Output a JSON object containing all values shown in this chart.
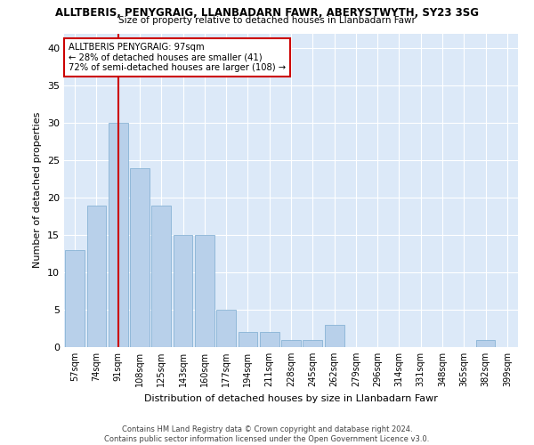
{
  "title1": "ALLTBERIS, PENYGRAIG, LLANBADARN FAWR, ABERYSTWYTH, SY23 3SG",
  "title2": "Size of property relative to detached houses in Llanbadarn Fawr",
  "xlabel": "Distribution of detached houses by size in Llanbadarn Fawr",
  "ylabel": "Number of detached properties",
  "bin_labels": [
    "57sqm",
    "74sqm",
    "91sqm",
    "108sqm",
    "125sqm",
    "143sqm",
    "160sqm",
    "177sqm",
    "194sqm",
    "211sqm",
    "228sqm",
    "245sqm",
    "262sqm",
    "279sqm",
    "296sqm",
    "314sqm",
    "331sqm",
    "348sqm",
    "365sqm",
    "382sqm",
    "399sqm"
  ],
  "bar_values": [
    13,
    19,
    30,
    24,
    19,
    15,
    15,
    5,
    2,
    2,
    1,
    1,
    3,
    0,
    0,
    0,
    0,
    0,
    0,
    1,
    0
  ],
  "bar_color": "#b8d0ea",
  "bar_edgecolor": "#7aaad0",
  "vline_x_index": 2,
  "vline_color": "#cc0000",
  "annotation_text": "ALLTBERIS PENYGRAIG: 97sqm\n← 28% of detached houses are smaller (41)\n72% of semi-detached houses are larger (108) →",
  "annotation_box_edgecolor": "#cc0000",
  "annotation_box_facecolor": "#ffffff",
  "ylim": [
    0,
    42
  ],
  "yticks": [
    0,
    5,
    10,
    15,
    20,
    25,
    30,
    35,
    40
  ],
  "background_color": "#dce9f8",
  "footer_text": "Contains HM Land Registry data © Crown copyright and database right 2024.\nContains public sector information licensed under the Open Government Licence v3.0."
}
